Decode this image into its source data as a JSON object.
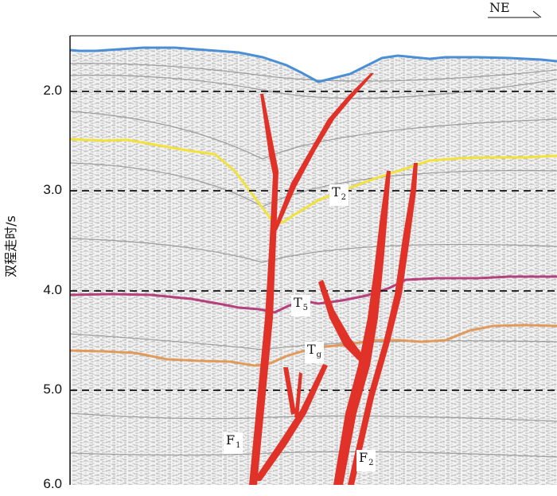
{
  "direction": {
    "label": "NE"
  },
  "y_axis": {
    "label": "双程走时/s",
    "ticks": [
      "2.0",
      "3.0",
      "4.0",
      "5.0",
      "6.0"
    ]
  },
  "horizons": [
    {
      "id": "T2",
      "base": "T",
      "sub": "2",
      "color": "#f2e23a"
    },
    {
      "id": "T5",
      "base": "T",
      "sub": "5",
      "color": "#b5407c"
    },
    {
      "id": "Tg",
      "base": "T",
      "sub": "g",
      "color": "#e09a5c"
    },
    {
      "id": "seafloor",
      "color": "#4a8fd6"
    }
  ],
  "faults": [
    {
      "base": "F",
      "sub": "1",
      "color": "#e03228"
    },
    {
      "base": "F",
      "sub": "2",
      "color": "#e03228"
    }
  ]
}
